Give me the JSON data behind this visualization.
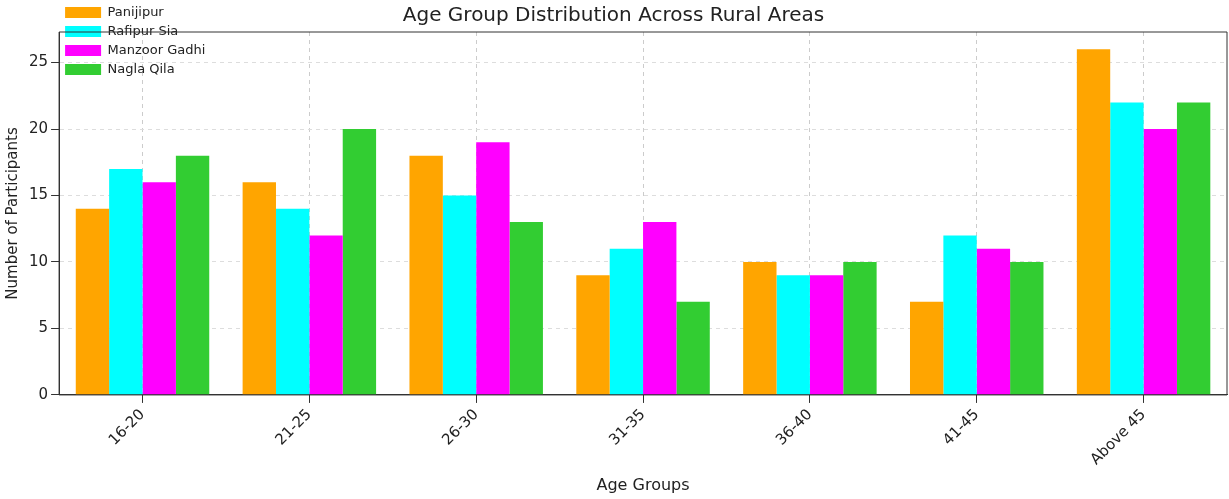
{
  "chart_data": {
    "type": "bar",
    "title": "Age Group Distribution Across Rural Areas",
    "xlabel": "Age Groups",
    "ylabel": "Number of Participants",
    "categories": [
      "16-20",
      "21-25",
      "26-30",
      "31-35",
      "36-40",
      "41-45",
      "Above 45"
    ],
    "series": [
      {
        "name": "Panijipur",
        "color": "#ffa500",
        "values": [
          14,
          16,
          18,
          9,
          10,
          7,
          26
        ]
      },
      {
        "name": "Rafipur Sia",
        "color": "#00ffff",
        "values": [
          17,
          14,
          15,
          11,
          9,
          12,
          22
        ]
      },
      {
        "name": "Manzoor Gadhi",
        "color": "#ff00ff",
        "values": [
          16,
          12,
          19,
          13,
          9,
          11,
          20
        ]
      },
      {
        "name": "Nagla Qila",
        "color": "#32cd32",
        "values": [
          18,
          20,
          13,
          7,
          10,
          10,
          22
        ]
      }
    ],
    "ylim": [
      0,
      27.3
    ],
    "yticks": [
      0,
      5,
      10,
      15,
      20,
      25
    ],
    "grid": true,
    "legend": "top left"
  }
}
